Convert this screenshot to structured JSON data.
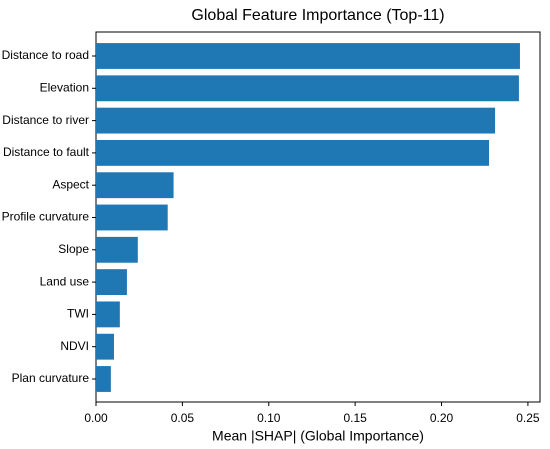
{
  "chart_data": {
    "type": "barh",
    "title": "Global Feature Importance (Top-11)",
    "x_label": "Mean |SHAP| (Global Importance)",
    "categories": [
      "Distance to road",
      "Elevation",
      "Distance to river",
      "Distance to fault",
      "Aspect",
      "Profile curvature",
      "Slope",
      "Land use",
      "TWI",
      "NDVI",
      "Plan curvature"
    ],
    "values": [
      0.2454,
      0.2448,
      0.231,
      0.2275,
      0.0449,
      0.0415,
      0.0242,
      0.0179,
      0.0138,
      0.0104,
      0.0086
    ],
    "color": "#1f77b4",
    "xlim": [
      0,
      0.257
    ],
    "xticks": [
      {
        "value": 0,
        "label": "0.00"
      },
      {
        "value": 0.05,
        "label": "0.05"
      },
      {
        "value": 0.1,
        "label": "0.10"
      },
      {
        "value": 0.15,
        "label": "0.15"
      },
      {
        "value": 0.2,
        "label": "0.20"
      },
      {
        "value": 0.25,
        "label": "0.25"
      }
    ],
    "grid": false
  }
}
